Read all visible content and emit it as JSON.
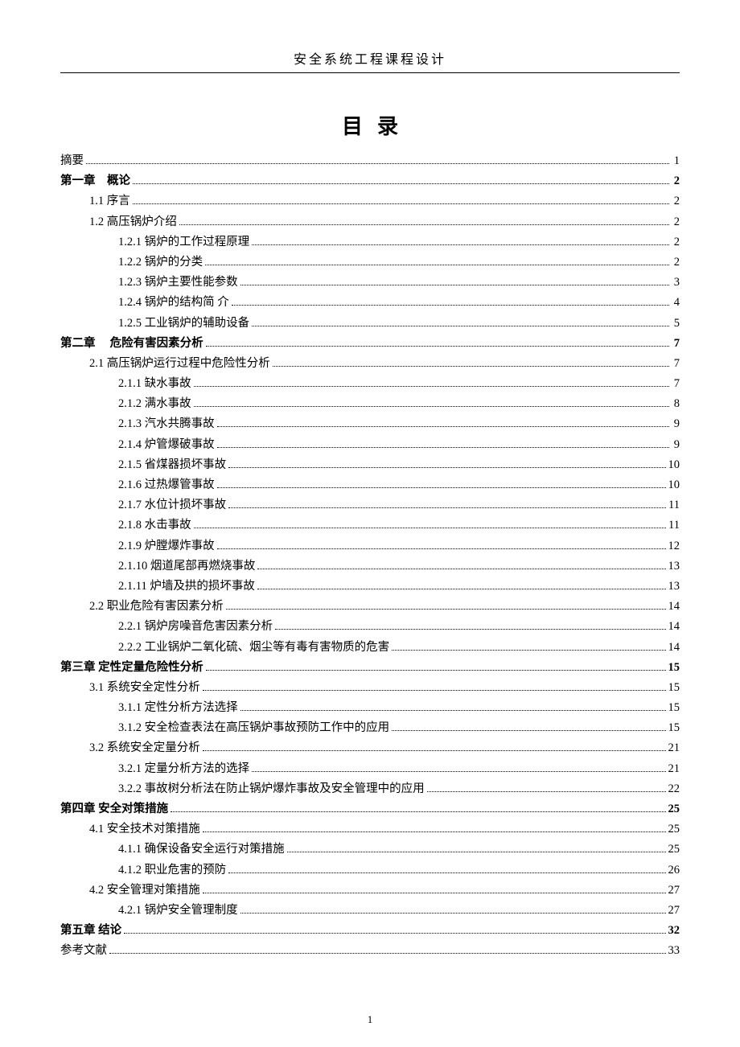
{
  "document": {
    "header_title": "安全系统工程课程设计",
    "toc_title": "目录",
    "page_number": "1",
    "text_color": "#000000",
    "background_color": "#ffffff",
    "dot_leader_color": "#000000",
    "entries": [
      {
        "label": "摘要",
        "page": "1",
        "indent": 0,
        "bold": false
      },
      {
        "label": "第一章　概论",
        "page": "2",
        "indent": 0,
        "bold": true
      },
      {
        "label": "1.1 序言",
        "page": "2",
        "indent": 1,
        "bold": false
      },
      {
        "label": "1.2 高压锅炉介绍",
        "page": "2",
        "indent": 1,
        "bold": false
      },
      {
        "label": "1.2.1 锅炉的工作过程原理",
        "page": "2",
        "indent": 2,
        "bold": false
      },
      {
        "label": "1.2.2 锅炉的分类",
        "page": "2",
        "indent": 2,
        "bold": false
      },
      {
        "label": "1.2.3 锅炉主要性能参数",
        "page": "3",
        "indent": 2,
        "bold": false
      },
      {
        "label": "1.2.4 锅炉的结构简 介",
        "page": "4",
        "indent": 2,
        "bold": false
      },
      {
        "label": "1.2.5 工业锅炉的辅助设备",
        "page": "5",
        "indent": 2,
        "bold": false
      },
      {
        "label": "第二章　 危险有害因素分析",
        "page": "7",
        "indent": 0,
        "bold": true
      },
      {
        "label": "2.1 高压锅炉运行过程中危险性分析",
        "page": "7",
        "indent": 1,
        "bold": false
      },
      {
        "label": "2.1.1 缺水事故",
        "page": "7",
        "indent": 2,
        "bold": false
      },
      {
        "label": "2.1.2 满水事故",
        "page": "8",
        "indent": 2,
        "bold": false
      },
      {
        "label": "2.1.3 汽水共腾事故",
        "page": "9",
        "indent": 2,
        "bold": false
      },
      {
        "label": "2.1.4 炉管爆破事故",
        "page": "9",
        "indent": 2,
        "bold": false
      },
      {
        "label": "2.1.5 省煤器损坏事故",
        "page": "10",
        "indent": 2,
        "bold": false
      },
      {
        "label": "2.1.6 过热爆管事故",
        "page": "10",
        "indent": 2,
        "bold": false
      },
      {
        "label": "2.1.7 水位计损坏事故",
        "page": "11",
        "indent": 2,
        "bold": false
      },
      {
        "label": "2.1.8 水击事故",
        "page": "11",
        "indent": 2,
        "bold": false
      },
      {
        "label": "2.1.9 炉膛爆炸事故",
        "page": "12",
        "indent": 2,
        "bold": false
      },
      {
        "label": "2.1.10 烟道尾部再燃烧事故",
        "page": "13",
        "indent": 2,
        "bold": false
      },
      {
        "label": "2.1.11 炉墙及拱的损坏事故",
        "page": "13",
        "indent": 2,
        "bold": false
      },
      {
        "label": "2.2 职业危险有害因素分析",
        "page": "14",
        "indent": 1,
        "bold": false
      },
      {
        "label": "2.2.1 锅炉房噪音危害因素分析",
        "page": "14",
        "indent": 2,
        "bold": false
      },
      {
        "label": "2.2.2 工业锅炉二氧化硫、烟尘等有毒有害物质的危害",
        "page": "14",
        "indent": 2,
        "bold": false
      },
      {
        "label": "第三章 定性定量危险性分析",
        "page": "15",
        "indent": 0,
        "bold": true
      },
      {
        "label": "3.1 系统安全定性分析",
        "page": "15",
        "indent": 1,
        "bold": false
      },
      {
        "label": "3.1.1 定性分析方法选择",
        "page": "15",
        "indent": 2,
        "bold": false
      },
      {
        "label": "3.1.2 安全检查表法在高压锅炉事故预防工作中的应用",
        "page": "15",
        "indent": 2,
        "bold": false
      },
      {
        "label": "3.2 系统安全定量分析",
        "page": "21",
        "indent": 1,
        "bold": false
      },
      {
        "label": "3.2.1 定量分析方法的选择",
        "page": "21",
        "indent": 2,
        "bold": false
      },
      {
        "label": "3.2.2 事故树分析法在防止锅炉爆炸事故及安全管理中的应用",
        "page": "22",
        "indent": 2,
        "bold": false
      },
      {
        "label": "第四章 安全对策措施",
        "page": "25",
        "indent": 0,
        "bold": true
      },
      {
        "label": "4.1 安全技术对策措施",
        "page": "25",
        "indent": 1,
        "bold": false
      },
      {
        "label": "4.1.1 确保设备安全运行对策措施",
        "page": "25",
        "indent": 2,
        "bold": false
      },
      {
        "label": "4.1.2 职业危害的预防",
        "page": "26",
        "indent": 2,
        "bold": false
      },
      {
        "label": "4.2  安全管理对策措施",
        "page": "27",
        "indent": 1,
        "bold": false
      },
      {
        "label": "4.2.1 锅炉安全管理制度",
        "page": "27",
        "indent": 2,
        "bold": false
      },
      {
        "label": "第五章 结论",
        "page": "32",
        "indent": 0,
        "bold": true
      },
      {
        "label": "参考文献",
        "page": "33",
        "indent": 0,
        "bold": false
      }
    ]
  }
}
